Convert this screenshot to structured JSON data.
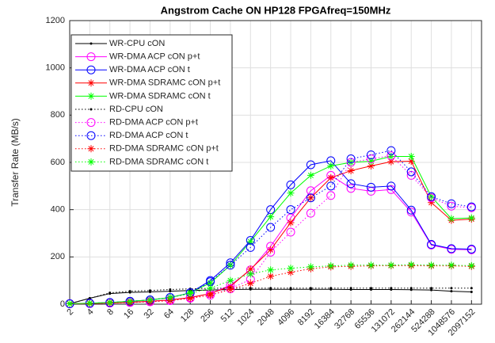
{
  "chart_data": {
    "type": "line",
    "title": "Angstrom Cache ON HP128 FPGAfreq=150MHz",
    "y_label": "Transfer Rate (MB/s)",
    "categories": [
      "2",
      "4",
      "8",
      "16",
      "32",
      "64",
      "128",
      "256",
      "512",
      "1024",
      "2048",
      "4096",
      "8192",
      "16384",
      "32768",
      "65536",
      "131072",
      "262144",
      "524288",
      "1048576",
      "2097152"
    ],
    "ylim": [
      0,
      1200
    ],
    "yticks": [
      0,
      200,
      400,
      600,
      800,
      1000,
      1200
    ],
    "grid": true,
    "legend": "upper left",
    "series": [
      {
        "name": "WR-CPU cON",
        "color": "#000000",
        "line": "solid",
        "marker": "dot",
        "values": [
          2,
          25,
          45,
          50,
          52,
          55,
          58,
          60,
          62,
          63,
          63,
          63,
          63,
          63,
          62,
          62,
          62,
          61,
          60,
          55,
          52
        ]
      },
      {
        "name": "WR-DMA ACP cON p+t",
        "color": "#ff00ff",
        "line": "solid",
        "marker": "circle",
        "values": [
          2,
          3,
          5,
          8,
          12,
          18,
          28,
          45,
          80,
          145,
          245,
          365,
          480,
          545,
          490,
          478,
          485,
          390,
          250,
          232,
          230
        ]
      },
      {
        "name": "WR-DMA ACP cON t",
        "color": "#0000ff",
        "line": "solid",
        "marker": "circle",
        "values": [
          2,
          4,
          7,
          12,
          18,
          28,
          48,
          100,
          175,
          270,
          400,
          505,
          590,
          607,
          510,
          495,
          500,
          398,
          253,
          235,
          233
        ]
      },
      {
        "name": "WR-DMA SDRAMC cON p+t",
        "color": "#ff0000",
        "line": "solid",
        "marker": "star",
        "values": [
          2,
          3,
          5,
          8,
          12,
          18,
          28,
          45,
          75,
          148,
          230,
          345,
          450,
          535,
          565,
          585,
          603,
          605,
          430,
          355,
          360
        ]
      },
      {
        "name": "WR-DMA SDRAMC cON t",
        "color": "#00ff00",
        "line": "solid",
        "marker": "star",
        "values": [
          2,
          4,
          7,
          12,
          18,
          28,
          48,
          90,
          165,
          265,
          370,
          470,
          545,
          585,
          600,
          605,
          625,
          625,
          455,
          362,
          365
        ]
      },
      {
        "name": "RD-CPU cON",
        "color": "#000000",
        "line": "dotted",
        "marker": "dot",
        "values": [
          2,
          25,
          48,
          55,
          58,
          62,
          65,
          67,
          68,
          68,
          68,
          68,
          68,
          68,
          68,
          68,
          68,
          68,
          68,
          68,
          68
        ]
      },
      {
        "name": "RD-DMA ACP cON p+t",
        "color": "#ff00ff",
        "line": "dotted",
        "marker": "circle",
        "values": [
          2,
          3,
          5,
          7,
          10,
          15,
          25,
          38,
          65,
          105,
          220,
          305,
          385,
          460,
          600,
          615,
          628,
          545,
          450,
          415,
          408
        ]
      },
      {
        "name": "RD-DMA ACP cON t",
        "color": "#0000ff",
        "line": "dotted",
        "marker": "circle",
        "values": [
          2,
          4,
          7,
          12,
          18,
          28,
          48,
          95,
          165,
          240,
          325,
          400,
          450,
          500,
          615,
          632,
          650,
          560,
          455,
          425,
          412
        ]
      },
      {
        "name": "RD-DMA SDRAMC cON p+t",
        "color": "#ff0000",
        "line": "dotted",
        "marker": "star",
        "values": [
          2,
          3,
          5,
          7,
          10,
          15,
          25,
          38,
          62,
          88,
          118,
          135,
          150,
          158,
          160,
          162,
          163,
          163,
          162,
          162,
          160
        ]
      },
      {
        "name": "RD-DMA SDRAMC cON t",
        "color": "#00ff00",
        "line": "dotted",
        "marker": "star",
        "values": [
          2,
          4,
          7,
          12,
          18,
          28,
          45,
          68,
          100,
          128,
          145,
          152,
          158,
          162,
          165,
          165,
          165,
          167,
          165,
          165,
          163
        ]
      }
    ]
  }
}
